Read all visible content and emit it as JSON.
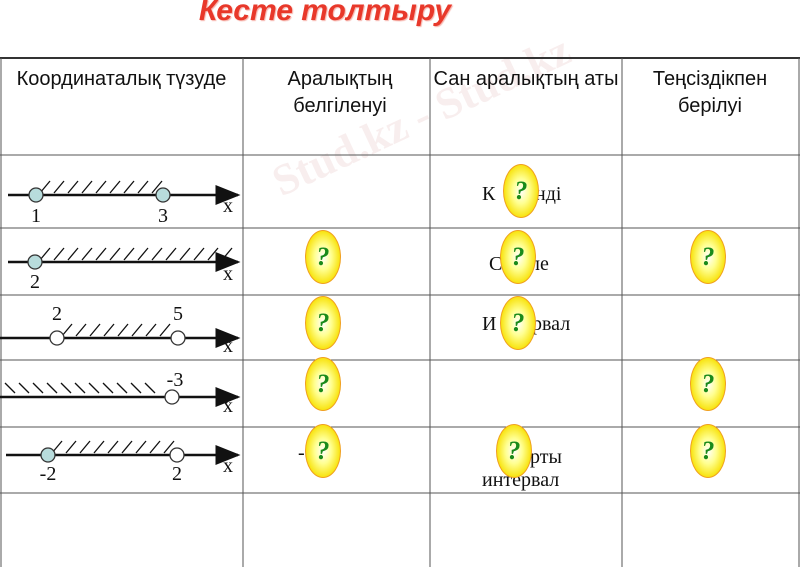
{
  "title": "Кесте толтыру",
  "watermark": "Stud.kz - Stud.kz",
  "headers": [
    "Координаталық түзуде",
    "Аралықтың белгіленуі",
    "Сан аралықтың аты",
    "Теңсіздікпен берілуі"
  ],
  "rows": [
    {
      "points": [
        "1",
        "3"
      ],
      "axis": "x",
      "name_left": "К",
      "name_right": "нді"
    },
    {
      "points": [
        "2"
      ],
      "axis": "x",
      "name_left": "С",
      "name_right": "ле"
    },
    {
      "points": [
        "2",
        "5"
      ],
      "axis": "x",
      "name_left": "И",
      "name_right": "рвал"
    },
    {
      "points": [
        "-3"
      ],
      "axis": "x"
    },
    {
      "points": [
        "-2",
        "2"
      ],
      "axis": "x",
      "notation_fragment": "-",
      "name_right": "рты",
      "name_line2": "интервал"
    }
  ],
  "placeholder_mark": "?",
  "colors": {
    "title": "#e8382a",
    "oval": "#f7e000",
    "question": "#1a8a1a",
    "filled_point": "#b8dcdc"
  }
}
